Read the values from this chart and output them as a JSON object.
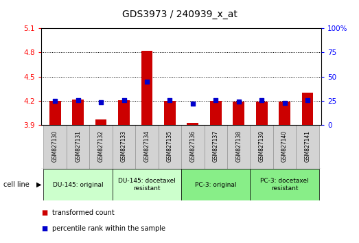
{
  "title": "GDS3973 / 240939_x_at",
  "samples": [
    "GSM827130",
    "GSM827131",
    "GSM827132",
    "GSM827133",
    "GSM827134",
    "GSM827135",
    "GSM827136",
    "GSM827137",
    "GSM827138",
    "GSM827139",
    "GSM827140",
    "GSM827141"
  ],
  "red_values": [
    4.2,
    4.22,
    3.97,
    4.21,
    4.82,
    4.2,
    3.93,
    4.2,
    4.19,
    4.19,
    4.19,
    4.3
  ],
  "blue_values": [
    4.2,
    4.205,
    4.18,
    4.205,
    4.435,
    4.205,
    4.165,
    4.205,
    4.19,
    4.205,
    4.175,
    4.21
  ],
  "ylim_left": [
    3.9,
    5.1
  ],
  "ylim_right": [
    0,
    100
  ],
  "yticks_left": [
    3.9,
    4.2,
    4.5,
    4.8,
    5.1
  ],
  "yticks_right": [
    0,
    25,
    50,
    75,
    100
  ],
  "ytick_labels_left": [
    "3.9",
    "4.2",
    "4.5",
    "4.8",
    "5.1"
  ],
  "ytick_labels_right": [
    "0",
    "25",
    "50",
    "75",
    "100%"
  ],
  "grid_yticks": [
    4.2,
    4.5,
    4.8
  ],
  "baseline": 3.9,
  "group_boundaries": [
    [
      0,
      2,
      "DU-145: original"
    ],
    [
      3,
      5,
      "DU-145: docetaxel\nresistant"
    ],
    [
      6,
      8,
      "PC-3: original"
    ],
    [
      9,
      11,
      "PC-3: docetaxel\nresistant"
    ]
  ],
  "group_colors": [
    "#ccffcc",
    "#ccffcc",
    "#88ee88",
    "#88ee88"
  ],
  "cell_line_label": "cell line",
  "legend_red": "transformed count",
  "legend_blue": "percentile rank within the sample",
  "bar_color": "#cc0000",
  "dot_color": "#0000cc",
  "bar_width": 0.5,
  "dot_size": 25,
  "title_fontsize": 10,
  "tick_fontsize": 7.5,
  "sample_fontsize": 5.5,
  "group_fontsize": 6.5,
  "legend_fontsize": 7,
  "bg_plot": "#ffffff",
  "sample_box_color": "#d3d3d3"
}
